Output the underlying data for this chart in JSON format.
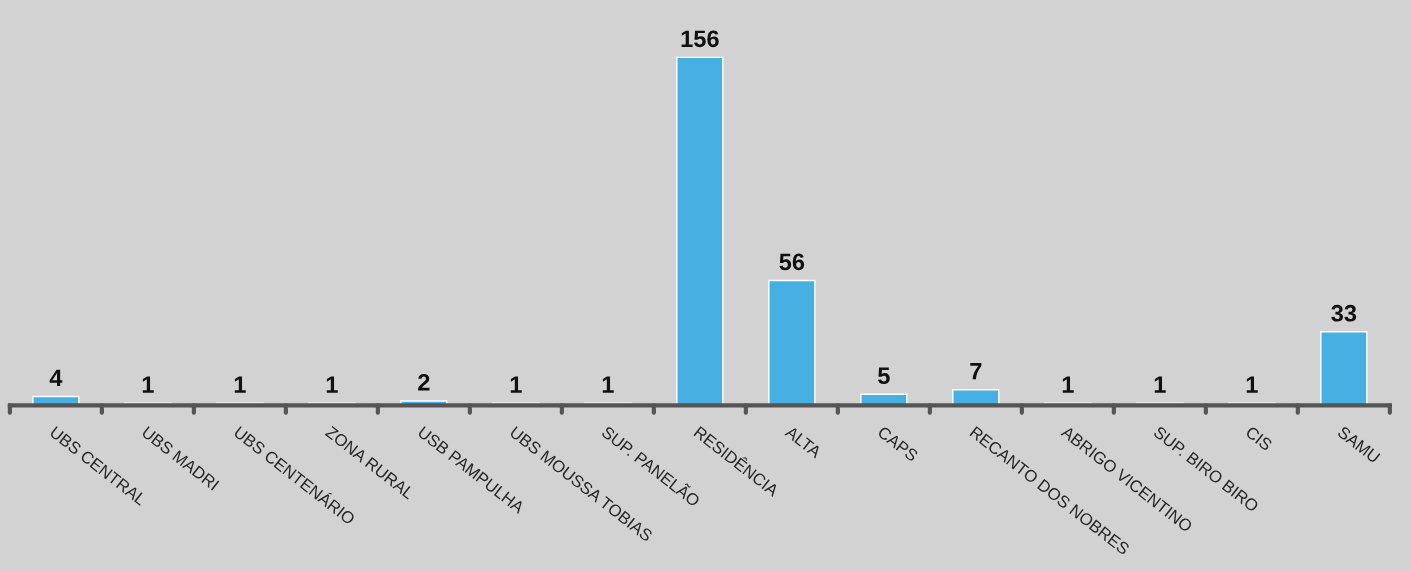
{
  "chart_data": {
    "type": "bar",
    "categories": [
      "UBS CENTRAL",
      "UBS MADRI",
      "UBS CENTENÁRIO",
      "ZONA RURAL",
      "USB PAMPULHA",
      "UBS MOUSSA TOBIAS",
      "SUP. PANELÃO",
      "RESIDÊNCIA",
      "ALTA",
      "CAPS",
      "RECANTO DOS NOBRES",
      "ABRIGO VICENTINO",
      "SUP. BIRO BIRO",
      "CIS",
      "SAMU"
    ],
    "values": [
      4,
      1,
      1,
      1,
      2,
      1,
      1,
      156,
      56,
      5,
      7,
      1,
      1,
      1,
      33
    ],
    "color": "#45b0e1",
    "data_labels": true,
    "legend": false
  }
}
